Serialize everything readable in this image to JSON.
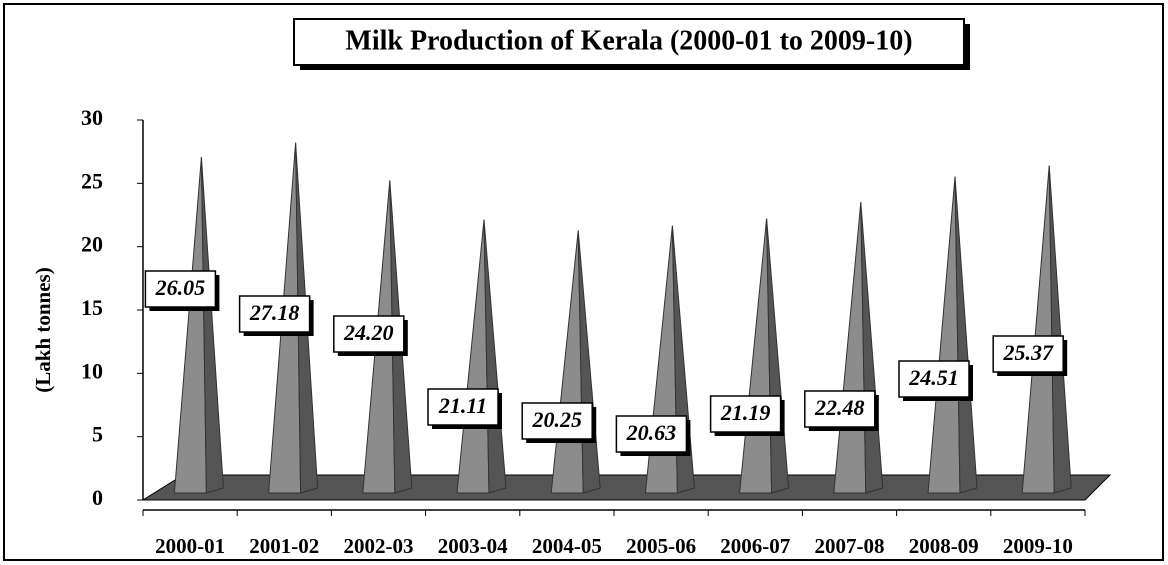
{
  "chart_data": {
    "type": "bar",
    "title": "Milk Production of Kerala (2000-01 to 2009-10)",
    "y_label": "(Lakh tonnes)",
    "categories": [
      "2000-01",
      "2001-02",
      "2002-03",
      "2003-04",
      "2004-05",
      "2005-06",
      "2006-07",
      "2007-08",
      "2008-09",
      "2009-10"
    ],
    "values": [
      26.05,
      27.18,
      24.2,
      21.11,
      20.25,
      20.63,
      21.19,
      22.48,
      24.51,
      25.37
    ],
    "value_labels": [
      "26.05",
      "27.18",
      "24.20",
      "21.11",
      "20.25",
      "20.63",
      "21.19",
      "22.48",
      "24.51",
      "25.37"
    ],
    "color": "#8c8c8c",
    "ylim": [
      0,
      30
    ],
    "yticks": [
      0,
      5,
      10,
      15,
      20,
      25,
      30
    ]
  }
}
